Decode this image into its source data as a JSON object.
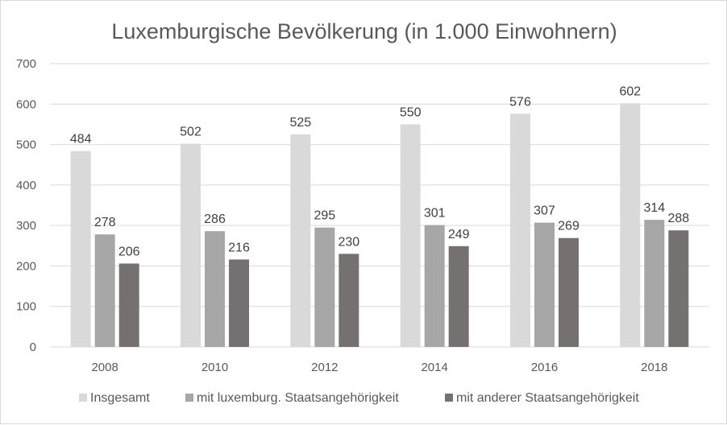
{
  "chart_data": {
    "type": "bar",
    "title": "Luxemburgische Bevölkerung (in 1.000 Einwohnern)",
    "categories": [
      "2008",
      "2010",
      "2012",
      "2014",
      "2016",
      "2018"
    ],
    "series": [
      {
        "name": "Insgesamt",
        "values": [
          484,
          502,
          525,
          550,
          576,
          602
        ],
        "color": "#d9d9d9"
      },
      {
        "name": "mit luxemburg. Staatsangehörigkeit",
        "values": [
          278,
          286,
          295,
          301,
          307,
          314
        ],
        "color": "#a6a6a6"
      },
      {
        "name": "mit anderer Staatsangehörigkeit",
        "values": [
          206,
          216,
          230,
          249,
          269,
          288
        ],
        "color": "#767171"
      }
    ],
    "ylim": [
      0,
      700
    ],
    "yticks": [
      0,
      100,
      200,
      300,
      400,
      500,
      600,
      700
    ],
    "grid": true,
    "legend": "bottom",
    "data_labels": true
  }
}
